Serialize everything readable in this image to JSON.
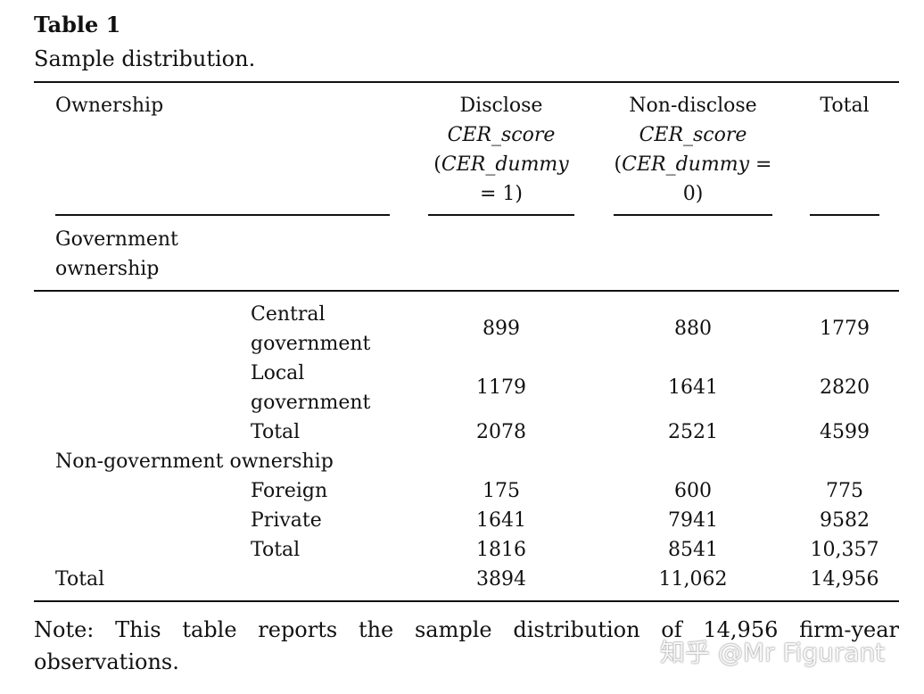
{
  "table": {
    "label": "Table 1",
    "caption": "Sample distribution.",
    "headers": {
      "ownership": "Ownership",
      "disclose": {
        "l1": "Disclose",
        "l2": "CER_score",
        "l3a": "(",
        "l3b": "CER_dummy",
        "l4": "= 1)"
      },
      "nondisclose": {
        "l1": "Non-disclose",
        "l2": "CER_score",
        "l3a": "(",
        "l3b": "CER_dummy",
        "l3c": " =",
        "l4": "0)"
      },
      "total": "Total"
    },
    "sections": {
      "gov": {
        "l1": "Government",
        "l2": "ownership"
      },
      "nongov": "Non-government ownership"
    },
    "rows": [
      {
        "l1": "Central",
        "l2": "government",
        "disclose": "899",
        "nondisclose": "880",
        "total": "1779"
      },
      {
        "l1": "Local",
        "l2": "government",
        "disclose": "1179",
        "nondisclose": "1641",
        "total": "2820"
      },
      {
        "l1": "Total",
        "disclose": "2078",
        "nondisclose": "2521",
        "total": "4599"
      },
      {
        "l1": "Foreign",
        "disclose": "175",
        "nondisclose": "600",
        "total": "775"
      },
      {
        "l1": "Private",
        "disclose": "1641",
        "nondisclose": "7941",
        "total": "9582"
      },
      {
        "l1": "Total",
        "disclose": "1816",
        "nondisclose": "8541",
        "total": "10,357"
      },
      {
        "l1": "Total",
        "disclose": "3894",
        "nondisclose": "11,062",
        "total": "14,956"
      }
    ],
    "note": "Note: This table reports the sample distribution of 14,956 firm-year observations."
  },
  "watermark": "知乎 @Mr Figurant"
}
